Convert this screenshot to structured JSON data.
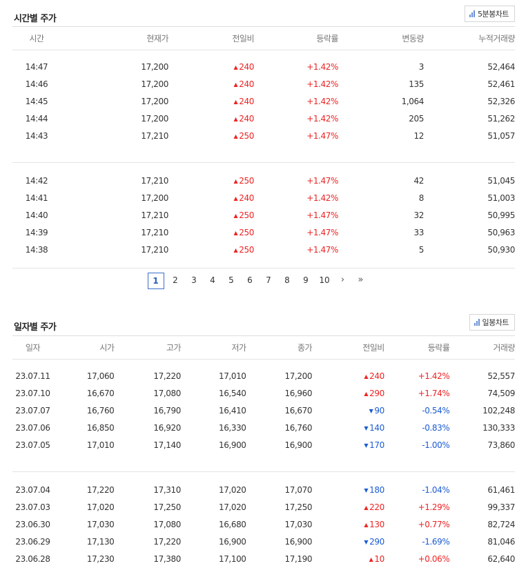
{
  "time_section": {
    "title": "시간별 주가",
    "chart_button": "5분봉차트",
    "headers": [
      "시간",
      "현재가",
      "전일비",
      "등락률",
      "변동량",
      "누적거래량"
    ],
    "groups": [
      [
        {
          "time": "14:47",
          "price": "17,200",
          "diff": "240",
          "dir": "up",
          "rate": "+1.42%",
          "change_vol": "3",
          "acc_vol": "52,464"
        },
        {
          "time": "14:46",
          "price": "17,200",
          "diff": "240",
          "dir": "up",
          "rate": "+1.42%",
          "change_vol": "135",
          "acc_vol": "52,461"
        },
        {
          "time": "14:45",
          "price": "17,200",
          "diff": "240",
          "dir": "up",
          "rate": "+1.42%",
          "change_vol": "1,064",
          "acc_vol": "52,326"
        },
        {
          "time": "14:44",
          "price": "17,200",
          "diff": "240",
          "dir": "up",
          "rate": "+1.42%",
          "change_vol": "205",
          "acc_vol": "51,262"
        },
        {
          "time": "14:43",
          "price": "17,210",
          "diff": "250",
          "dir": "up",
          "rate": "+1.47%",
          "change_vol": "12",
          "acc_vol": "51,057"
        }
      ],
      [
        {
          "time": "14:42",
          "price": "17,210",
          "diff": "250",
          "dir": "up",
          "rate": "+1.47%",
          "change_vol": "42",
          "acc_vol": "51,045"
        },
        {
          "time": "14:41",
          "price": "17,200",
          "diff": "240",
          "dir": "up",
          "rate": "+1.42%",
          "change_vol": "8",
          "acc_vol": "51,003"
        },
        {
          "time": "14:40",
          "price": "17,210",
          "diff": "250",
          "dir": "up",
          "rate": "+1.47%",
          "change_vol": "32",
          "acc_vol": "50,995"
        },
        {
          "time": "14:39",
          "price": "17,210",
          "diff": "250",
          "dir": "up",
          "rate": "+1.47%",
          "change_vol": "33",
          "acc_vol": "50,963"
        },
        {
          "time": "14:38",
          "price": "17,210",
          "diff": "250",
          "dir": "up",
          "rate": "+1.47%",
          "change_vol": "5",
          "acc_vol": "50,930"
        }
      ]
    ]
  },
  "pagination": {
    "pages": [
      "1",
      "2",
      "3",
      "4",
      "5",
      "6",
      "7",
      "8",
      "9",
      "10"
    ],
    "current": "1",
    "next_icon": "›",
    "last_icon": "»"
  },
  "daily_section": {
    "title": "일자별 주가",
    "chart_button": "일봉차트",
    "headers": [
      "일자",
      "시가",
      "고가",
      "저가",
      "종가",
      "전일비",
      "등락률",
      "거래량"
    ],
    "groups": [
      [
        {
          "date": "23.07.11",
          "open": "17,060",
          "high": "17,220",
          "low": "17,010",
          "close": "17,200",
          "diff": "240",
          "dir": "up",
          "rate": "+1.42%",
          "volume": "52,557"
        },
        {
          "date": "23.07.10",
          "open": "16,670",
          "high": "17,080",
          "low": "16,540",
          "close": "16,960",
          "diff": "290",
          "dir": "up",
          "rate": "+1.74%",
          "volume": "74,509"
        },
        {
          "date": "23.07.07",
          "open": "16,760",
          "high": "16,790",
          "low": "16,410",
          "close": "16,670",
          "diff": "90",
          "dir": "down",
          "rate": "-0.54%",
          "volume": "102,248"
        },
        {
          "date": "23.07.06",
          "open": "16,850",
          "high": "16,920",
          "low": "16,330",
          "close": "16,760",
          "diff": "140",
          "dir": "down",
          "rate": "-0.83%",
          "volume": "130,333"
        },
        {
          "date": "23.07.05",
          "open": "17,010",
          "high": "17,140",
          "low": "16,900",
          "close": "16,900",
          "diff": "170",
          "dir": "down",
          "rate": "-1.00%",
          "volume": "73,860"
        }
      ],
      [
        {
          "date": "23.07.04",
          "open": "17,220",
          "high": "17,310",
          "low": "17,020",
          "close": "17,070",
          "diff": "180",
          "dir": "down",
          "rate": "-1.04%",
          "volume": "61,461"
        },
        {
          "date": "23.07.03",
          "open": "17,020",
          "high": "17,250",
          "low": "17,020",
          "close": "17,250",
          "diff": "220",
          "dir": "up",
          "rate": "+1.29%",
          "volume": "99,337"
        },
        {
          "date": "23.06.30",
          "open": "17,030",
          "high": "17,080",
          "low": "16,680",
          "close": "17,030",
          "diff": "130",
          "dir": "up",
          "rate": "+0.77%",
          "volume": "82,724"
        },
        {
          "date": "23.06.29",
          "open": "17,130",
          "high": "17,220",
          "low": "16,900",
          "close": "16,900",
          "diff": "290",
          "dir": "down",
          "rate": "-1.69%",
          "volume": "81,046"
        },
        {
          "date": "23.06.28",
          "open": "17,230",
          "high": "17,380",
          "low": "17,100",
          "close": "17,190",
          "diff": "10",
          "dir": "up",
          "rate": "+0.06%",
          "volume": "62,640"
        }
      ]
    ]
  },
  "colors": {
    "up": "#ee2222",
    "down": "#1a5bd3",
    "active_page": "#3a6fc8"
  },
  "icons": {
    "chart_button": "bar-chart-icon",
    "up": "triangle-up-icon",
    "down": "triangle-down-icon"
  }
}
